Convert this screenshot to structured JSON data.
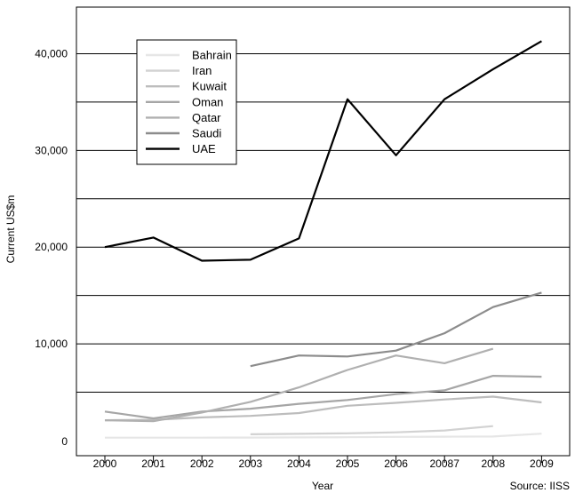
{
  "chart_data": {
    "type": "line",
    "title": "",
    "xlabel": "Year",
    "ylabel": "Current US$m",
    "source": "Source: IISS",
    "categories": [
      "2000",
      "2001",
      "2002",
      "2003",
      "2004",
      "2005",
      "2006",
      "20087",
      "2008",
      "2009"
    ],
    "ylim": [
      0,
      45000
    ],
    "yticks": [
      {
        "value": 0,
        "label": "0"
      },
      {
        "value": 10000,
        "label": "10,000"
      },
      {
        "value": 20000,
        "label": "20,000"
      },
      {
        "value": 30000,
        "label": "30,000"
      },
      {
        "value": 40000,
        "label": "40,000"
      }
    ],
    "gridlines": [
      5000,
      10000,
      15000,
      20000,
      25000,
      30000,
      35000,
      40000
    ],
    "legend_position": "top-left",
    "series": [
      {
        "name": "Bahrain",
        "color": "#e6e6e6",
        "values": [
          300,
          300,
          300,
          310,
          330,
          350,
          390,
          400,
          420,
          720
        ]
      },
      {
        "name": "Iran",
        "color": "#d2d2d2",
        "values": [
          null,
          null,
          null,
          650,
          700,
          750,
          850,
          1050,
          1500,
          null
        ]
      },
      {
        "name": "Kuwait",
        "color": "#bdbdbd",
        "values": [
          2100,
          2150,
          2400,
          2550,
          2850,
          3600,
          3900,
          4250,
          4550,
          3950
        ]
      },
      {
        "name": "Oman",
        "color": "#a6a6a6",
        "values": [
          3000,
          2300,
          3000,
          3300,
          3800,
          4200,
          4800,
          5200,
          6700,
          6600
        ]
      },
      {
        "name": "Qatar",
        "color": "#b0b0b0",
        "values": [
          2100,
          2000,
          2900,
          4000,
          5500,
          7300,
          8800,
          8000,
          9500,
          null
        ]
      },
      {
        "name": "Saudi",
        "color": "#8c8c8c",
        "values": [
          null,
          null,
          null,
          7700,
          8800,
          8700,
          9300,
          11100,
          13800,
          15300
        ]
      },
      {
        "name": "UAE",
        "color": "#000000",
        "values": [
          20000,
          21000,
          18600,
          18700,
          20900,
          35300,
          29500,
          35300,
          38400,
          41300
        ]
      }
    ]
  }
}
